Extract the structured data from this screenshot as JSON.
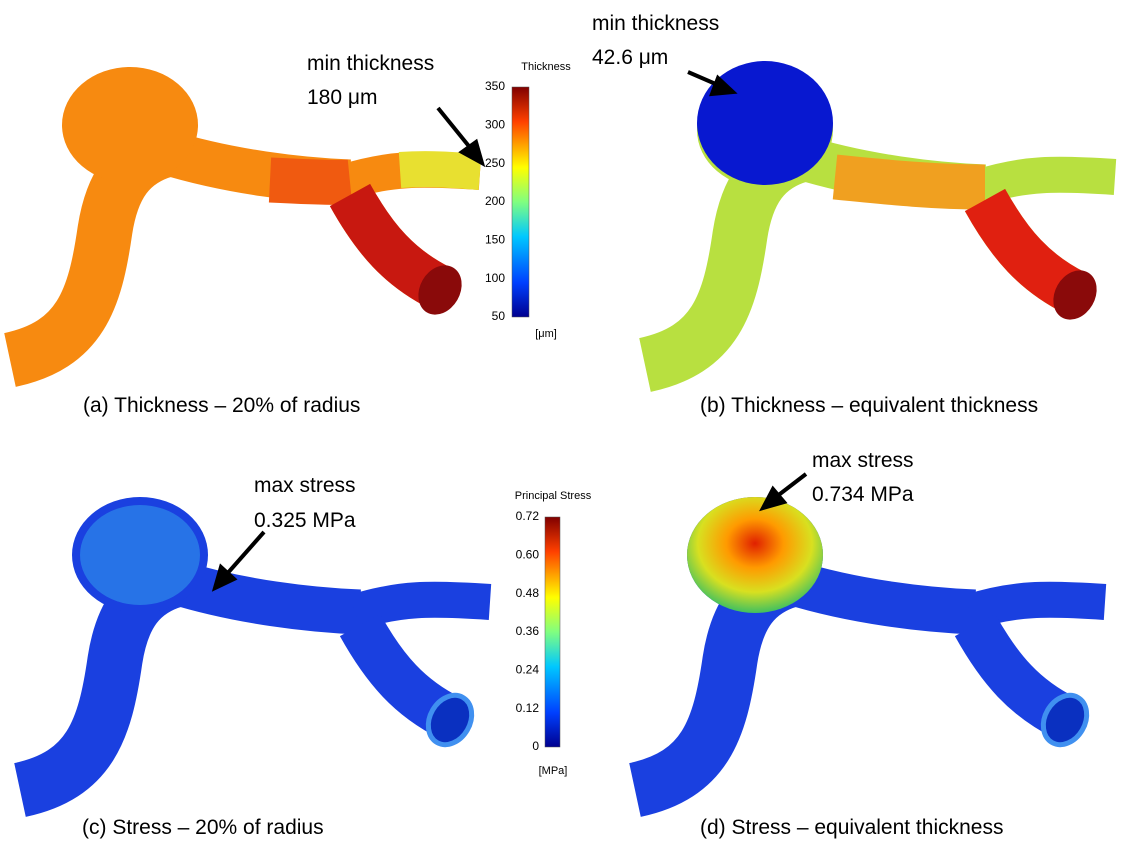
{
  "panels": [
    {
      "caption": "(a) Thickness – 20% of radius",
      "annotation": {
        "label": "min thickness",
        "value": "180 μm"
      }
    },
    {
      "caption": "(b) Thickness – equivalent thickness",
      "annotation": {
        "label": "min thickness",
        "value": "42.6 μm"
      }
    },
    {
      "caption": "(c) Stress – 20% of radius",
      "annotation": {
        "label": "max stress",
        "value": "0.325 MPa"
      }
    },
    {
      "caption": "(d) Stress – equivalent thickness",
      "annotation": {
        "label": "max stress",
        "value": "0.734 MPa"
      }
    }
  ],
  "colorbars": [
    {
      "title": "Thickness",
      "ticks": [
        "350",
        "300",
        "250",
        "200",
        "150",
        "100",
        "50"
      ],
      "unit": "[μm]"
    },
    {
      "title": "Principal Stress",
      "ticks": [
        "0.72",
        "0.60",
        "0.48",
        "0.36",
        "0.24",
        "0.12",
        "0"
      ],
      "unit": "[MPa]"
    }
  ]
}
